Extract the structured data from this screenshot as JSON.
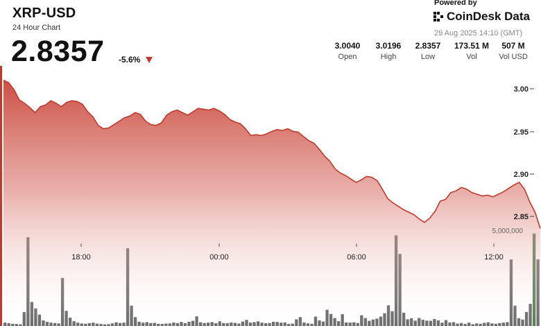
{
  "header": {
    "title": "XRP-USD",
    "subtitle": "24 Hour Chart",
    "price": "2.8357",
    "change": "-5.6%",
    "powered_by": "Powered by",
    "brand": "CoinDesk Data",
    "timestamp": "29 Aug 2025 14:10 (GMT)"
  },
  "stats": [
    {
      "value": "3.0040",
      "label": "Open"
    },
    {
      "value": "3.0196",
      "label": "High"
    },
    {
      "value": "2.8357",
      "label": "Low"
    },
    {
      "value": "173.51 M",
      "label": "Vol"
    },
    {
      "value": "507 M",
      "label": "Vol USD"
    }
  ],
  "colors": {
    "line": "#c0392b",
    "area_top": "#c9463a",
    "volume_bar": "#333333",
    "volume_bar_highlight": "#3f6b3a",
    "down_arrow": "#c0392b"
  },
  "chart_data": [
    {
      "type": "area",
      "title": "",
      "xlabel": "",
      "ylabel": "",
      "x_ticks": [
        "18:00",
        "00:00",
        "06:00",
        "12:00"
      ],
      "y_ticks": [
        "3.00",
        "2.95",
        "2.90",
        "2.85"
      ],
      "ylim": [
        2.82,
        3.04
      ],
      "grid": false,
      "series": [
        {
          "values": [
            3.01,
            3.007,
            2.999,
            2.987,
            2.983,
            2.978,
            2.972,
            2.979,
            2.981,
            2.986,
            2.983,
            2.979,
            2.984,
            2.986,
            2.985,
            2.982,
            2.973,
            2.967,
            2.957,
            2.953,
            2.954,
            2.958,
            2.962,
            2.966,
            2.968,
            2.972,
            2.97,
            2.962,
            2.958,
            2.957,
            2.96,
            2.969,
            2.973,
            2.975,
            2.972,
            2.969,
            2.973,
            2.977,
            2.976,
            2.975,
            2.977,
            2.974,
            2.97,
            2.964,
            2.961,
            2.959,
            2.953,
            2.945,
            2.946,
            2.945,
            2.947,
            2.95,
            2.952,
            2.951,
            2.953,
            2.95,
            2.949,
            2.944,
            2.939,
            2.936,
            2.929,
            2.921,
            2.915,
            2.906,
            2.901,
            2.898,
            2.894,
            2.89,
            2.893,
            2.897,
            2.896,
            2.892,
            2.882,
            2.871,
            2.866,
            2.862,
            2.858,
            2.855,
            2.852,
            2.847,
            2.843,
            2.848,
            2.856,
            2.868,
            2.87,
            2.878,
            2.88,
            2.884,
            2.882,
            2.878,
            2.876,
            2.874,
            2.875,
            2.873,
            2.876,
            2.879,
            2.883,
            2.887,
            2.89,
            2.882,
            2.867,
            2.855,
            2.8357
          ]
        }
      ]
    },
    {
      "type": "bar",
      "title": "",
      "xlabel": "",
      "ylabel": "",
      "y_ticks": [
        "5,000,000"
      ],
      "ylim": [
        0,
        6000000
      ],
      "series": [
        {
          "values": [
            180000,
            150000,
            120000,
            110000,
            90000,
            750000,
            4800000,
            1300000,
            950000,
            620000,
            300000,
            220000,
            180000,
            160000,
            140000,
            2600000,
            820000,
            450000,
            260000,
            180000,
            140000,
            120000,
            150000,
            180000,
            130000,
            110000,
            90000,
            100000,
            140000,
            200000,
            160000,
            180000,
            4200000,
            1100000,
            480000,
            230000,
            180000,
            210000,
            160000,
            170000,
            120000,
            110000,
            130000,
            140000,
            190000,
            160000,
            220000,
            150000,
            230000,
            280000,
            520000,
            200000,
            160000,
            180000,
            210000,
            150000,
            250000,
            160000,
            150000,
            190000,
            170000,
            130000,
            240000,
            330000,
            180000,
            210000,
            250000,
            180000,
            150000,
            160000,
            230000,
            220000,
            180000,
            190000,
            110000,
            130000,
            360000,
            480000,
            190000,
            140000,
            120000,
            510000,
            300000,
            240000,
            880000,
            650000,
            430000,
            260000,
            640000,
            190000,
            180000,
            200000,
            160000,
            580000,
            430000,
            280000,
            350000,
            400000,
            510000,
            690000,
            1120000,
            800000,
            4900000,
            3900000,
            720000,
            360000,
            420000,
            290000,
            430000,
            340000,
            290000,
            280000,
            380000,
            300000,
            180000,
            320000,
            190000,
            210000,
            130000,
            160000,
            110000,
            180000,
            100000,
            140000,
            120000,
            170000,
            200000,
            140000,
            120000,
            160000,
            180000,
            210000,
            3600000,
            1100000,
            420000,
            350000,
            760000,
            1200000,
            5000000,
            3600000
          ]
        }
      ]
    }
  ]
}
